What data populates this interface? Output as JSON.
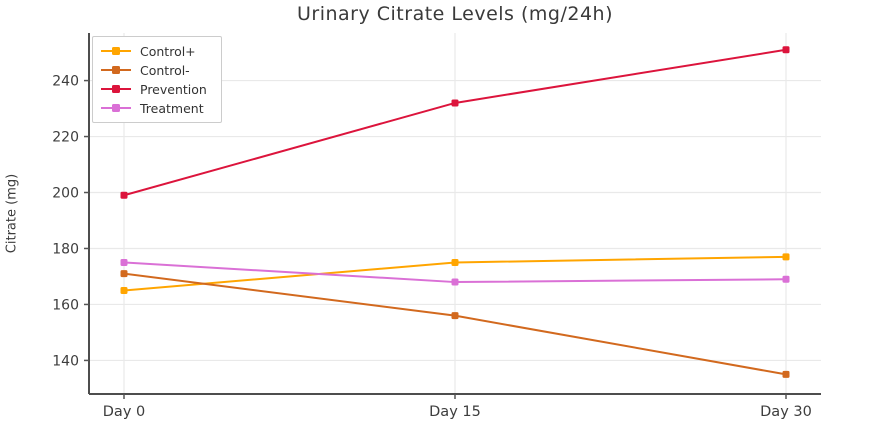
{
  "chart_data": {
    "type": "line",
    "title": "Urinary Citrate Levels (mg/24h)",
    "xlabel": "",
    "ylabel": "Citrate (mg)",
    "categories": [
      "Day 0",
      "Day 15",
      "Day 30"
    ],
    "series": [
      {
        "name": "Control+",
        "color": "#FFA500",
        "values": [
          165,
          175,
          177
        ]
      },
      {
        "name": "Control-",
        "color": "#D2691E",
        "values": [
          171,
          156,
          135
        ]
      },
      {
        "name": "Prevention",
        "color": "#DC143C",
        "values": [
          199,
          232,
          251
        ]
      },
      {
        "name": "Treatment",
        "color": "#DA70D6",
        "values": [
          175,
          168,
          169
        ]
      }
    ],
    "ylim": [
      128,
      257
    ],
    "yticks": [
      140,
      160,
      180,
      200,
      220,
      240
    ],
    "grid": true,
    "legend_position": "upper left",
    "marker": "square"
  },
  "style": {
    "grid_color": "#e9e9e9",
    "spine_color": "#4d4d4d",
    "tick_color": "#555555",
    "tick_label_color": "#3d3d3d",
    "background": "#ffffff"
  }
}
